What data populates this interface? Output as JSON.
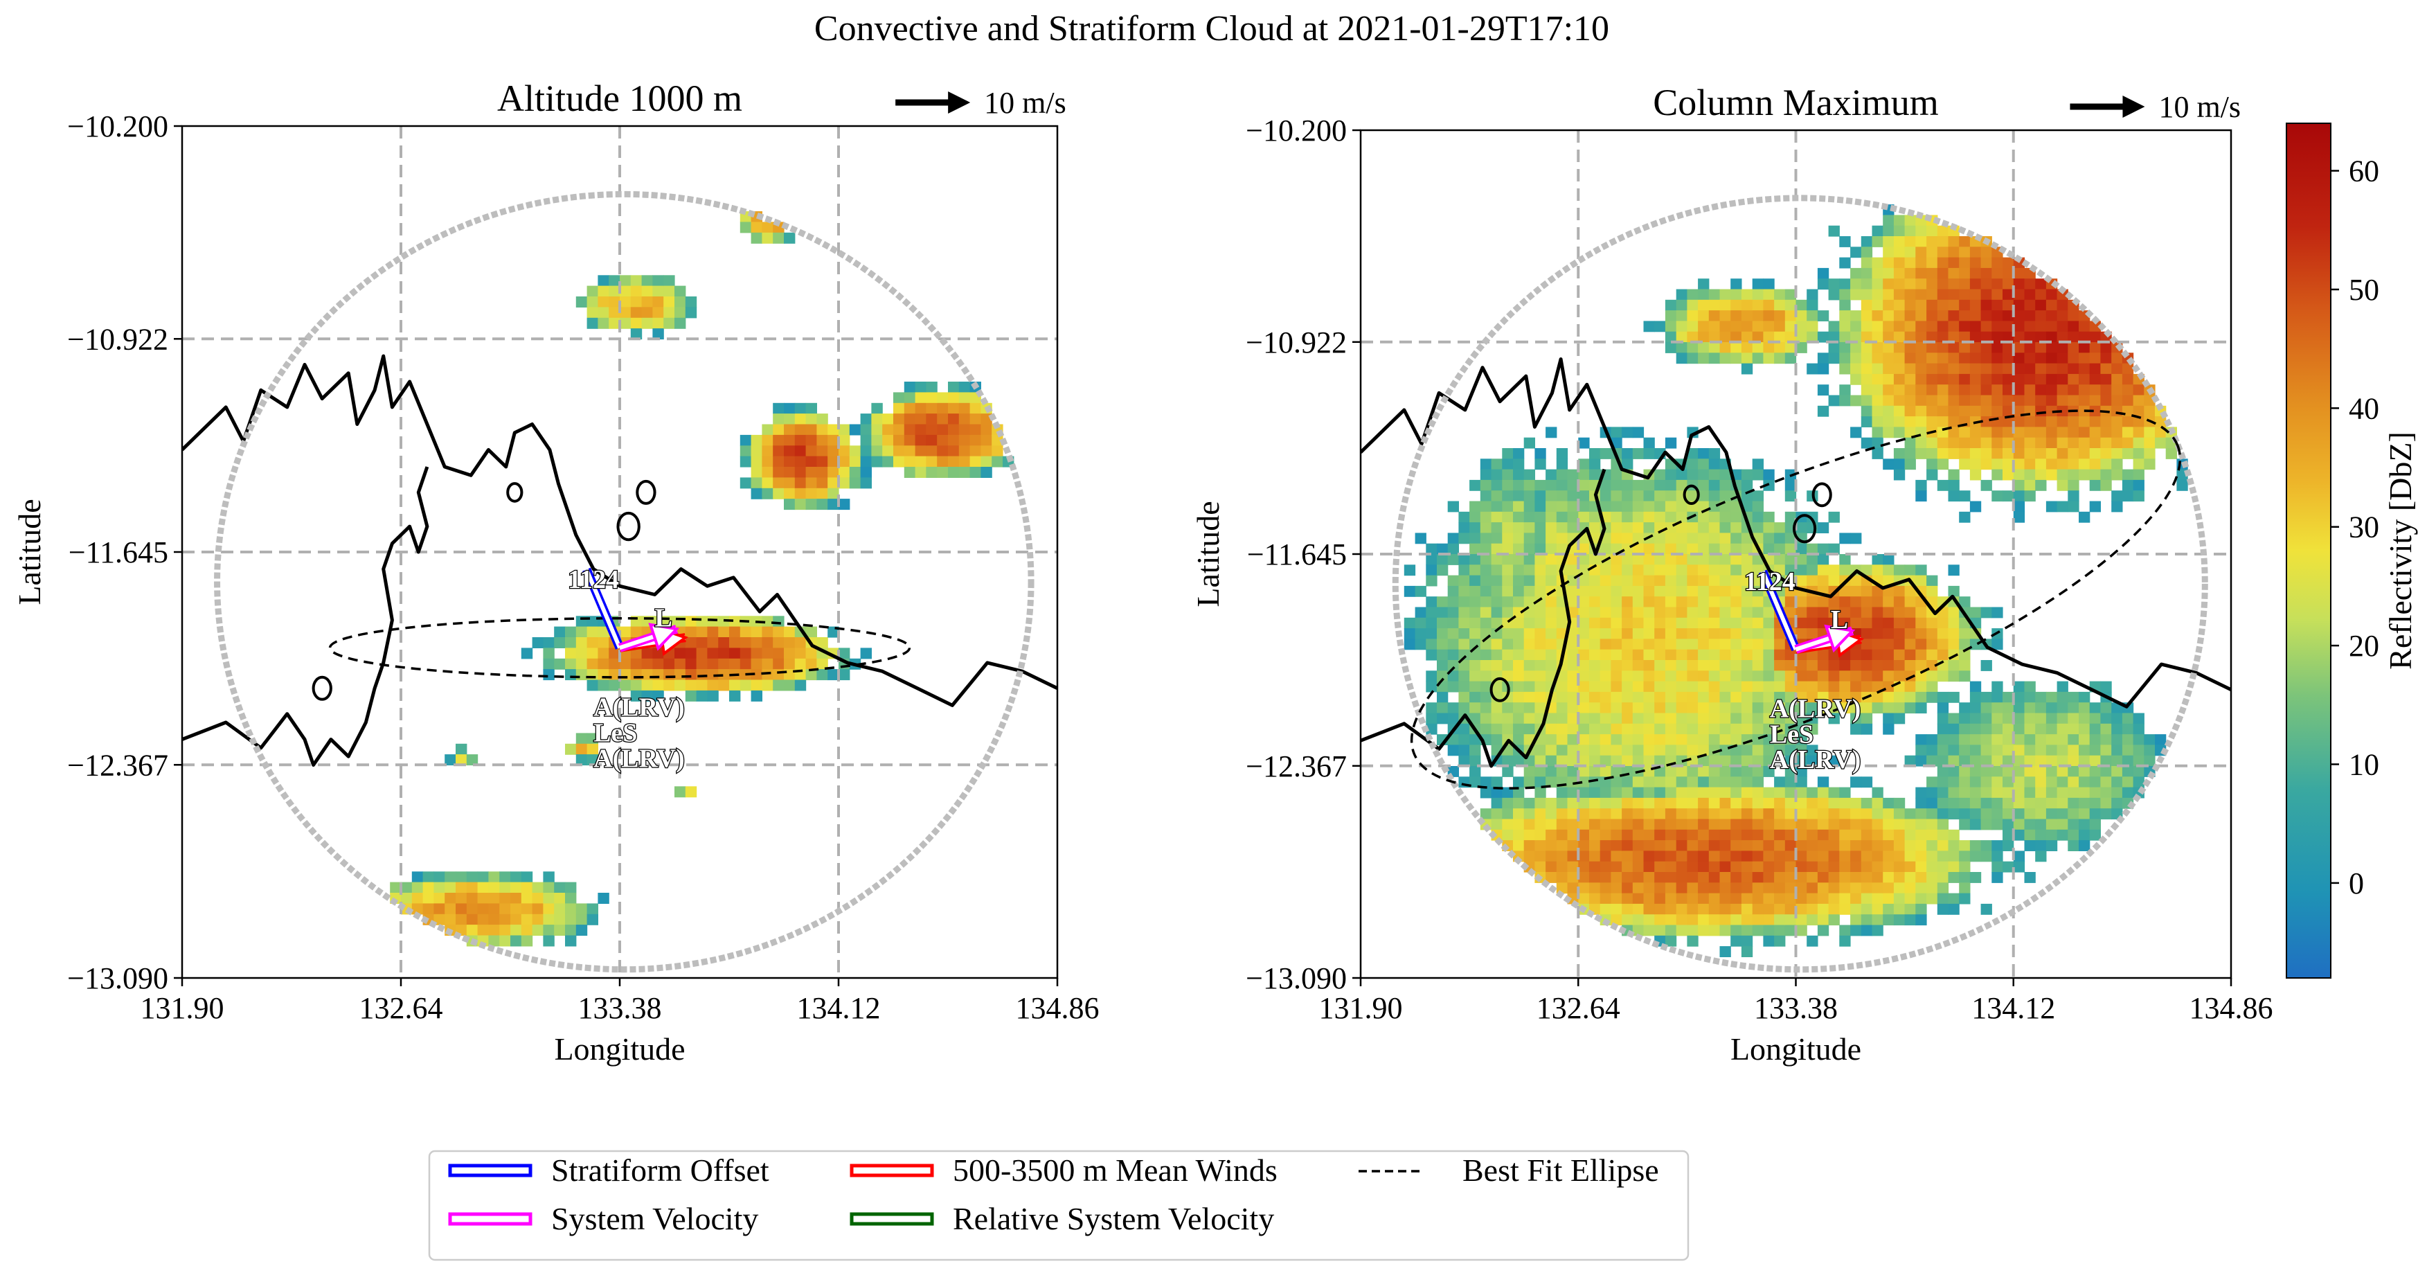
{
  "figure": {
    "suptitle": "Convective and Stratiform Cloud at 2021-01-29T17:10"
  },
  "scale_label": "10 m/s",
  "colorbar": {
    "label": "Reflectivity [DbZ]",
    "range": [
      -8,
      64
    ],
    "ticks": [
      "0",
      "10",
      "20",
      "30",
      "40",
      "50",
      "60"
    ]
  },
  "legend": {
    "items": [
      {
        "label": "Stratiform Offset",
        "color": "#0000ff",
        "style": "double-line"
      },
      {
        "label": "System Velocity",
        "color": "#ff00ff",
        "style": "double-line"
      },
      {
        "label": "500-3500 m Mean Winds",
        "color": "#ff0000",
        "style": "double-line"
      },
      {
        "label": "Relative System Velocity",
        "color": "#006400",
        "style": "double-line"
      },
      {
        "label": "Best Fit Ellipse",
        "color": "#000000",
        "style": "dashed"
      }
    ]
  },
  "chart_data": [
    {
      "type": "heatmap",
      "title": "Altitude 1000 m",
      "xlabel": "Longitude",
      "ylabel": "Latitude",
      "xlim": [
        131.9,
        134.86
      ],
      "ylim": [
        -13.09,
        -10.2
      ],
      "xticks": [
        "131.90",
        "132.64",
        "133.38",
        "134.12",
        "134.86"
      ],
      "yticks": [
        "-10.200",
        "-10.922",
        "-11.645",
        "-12.367",
        "-13.090"
      ],
      "grid": true,
      "vector_scale": "10 m/s",
      "system_label": "1124",
      "centroid": [
        133.38,
        -11.97
      ],
      "annotations": [
        "L",
        "A(LRV)",
        "LeS",
        "A(LRV)"
      ],
      "ellipse": {
        "center": [
          133.38,
          -11.97
        ],
        "semi_major_deg": 0.98,
        "semi_minor_deg": 0.1,
        "angle_deg": 0
      }
    },
    {
      "type": "heatmap",
      "title": "Column Maximum",
      "xlabel": "Longitude",
      "ylabel": "Latitude",
      "xlim": [
        131.9,
        134.86
      ],
      "ylim": [
        -13.09,
        -10.2
      ],
      "xticks": [
        "131.90",
        "132.64",
        "133.38",
        "134.12",
        "134.86"
      ],
      "yticks": [
        "-10.200",
        "-10.922",
        "-11.645",
        "-12.367",
        "-13.090"
      ],
      "grid": true,
      "vector_scale": "10 m/s",
      "system_label": "1124",
      "centroid": [
        133.38,
        -11.97
      ],
      "annotations": [
        "L",
        "A(LRV)",
        "LeS",
        "A(LRV)"
      ],
      "ellipse": {
        "center": [
          133.38,
          -11.8
        ],
        "semi_major_deg": 1.4,
        "semi_minor_deg": 0.4,
        "angle_deg": -22
      }
    }
  ]
}
